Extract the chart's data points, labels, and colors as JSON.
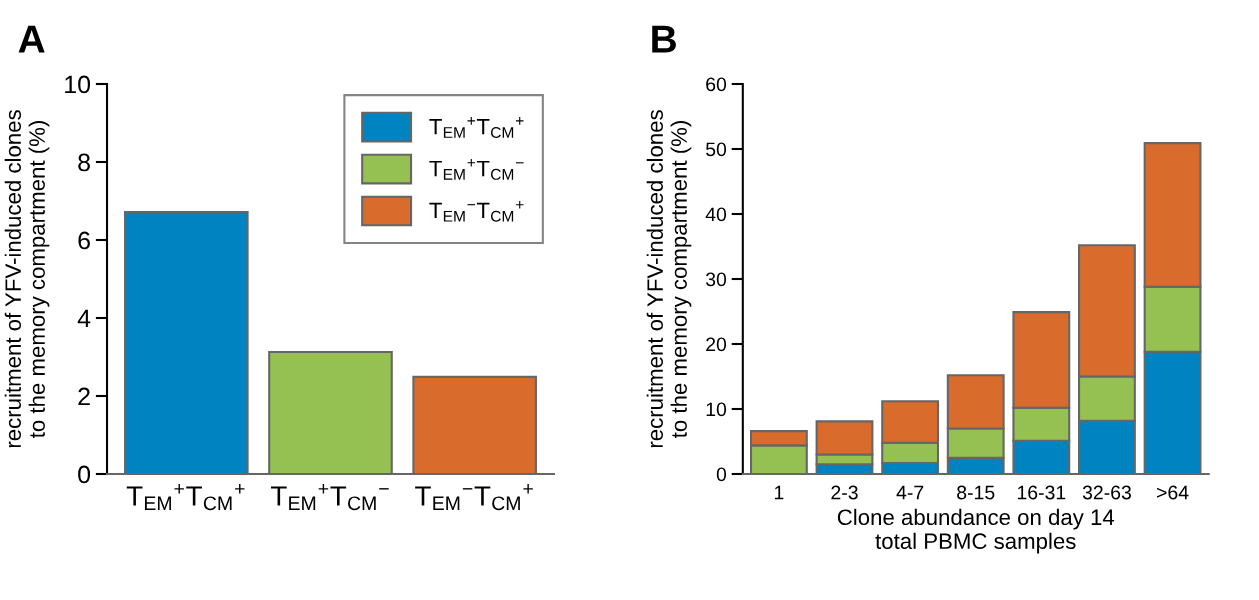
{
  "chart_data": [
    {
      "type": "bar",
      "title": "A",
      "ylabel": "recruitment of YFV-induced clones\nto the memory compartment (%)",
      "categories": [
        "T$_{EM}$$^{+}$T$_{CM}$$^{+}$",
        "T$_{EM}$$^{+}$T$_{CM}$$^{−}$",
        "T$_{EM}$$^{−}$T$_{CM}$$^{+}$"
      ],
      "series": [
        {
          "name": "T$_{EM}$$^{+}$T$_{CM}$$^{+}$",
          "color": "#0083c1",
          "values": [
            6.72,
            null,
            null
          ]
        },
        {
          "name": "T$_{EM}$$^{+}$T$_{CM}$$^{−}$",
          "color": "#94c151",
          "values": [
            null,
            3.13,
            null
          ]
        },
        {
          "name": "T$_{EM}$$^{−}$T$_{CM}$$^{+}$",
          "color": "#d96b2d",
          "values": [
            null,
            null,
            2.49
          ]
        }
      ],
      "ylim": [
        0,
        10
      ],
      "yticks": [
        0,
        2,
        4,
        6,
        8,
        10
      ],
      "grid": false,
      "legend": "top right"
    },
    {
      "type": "bar",
      "title": "B",
      "ylabel": "recruitment of YFV-induced clones\nto the memory compartment (%)",
      "xlabel": "Clone abundance on day 14\ntotal PBMC samples",
      "categories": [
        "1",
        "2-3",
        "4-7",
        "8-15",
        "16-31",
        "32-63",
        ">64"
      ],
      "stacked": true,
      "series": [
        {
          "color": "#0083c1",
          "values": [
            0,
            1.5,
            1.7,
            2.5,
            5.1,
            8.2,
            18.8
          ]
        },
        {
          "color": "#94c151",
          "values": [
            4.4,
            1.5,
            3.1,
            4.5,
            5.1,
            6.8,
            10.0
          ]
        },
        {
          "color": "#d96b2d",
          "values": [
            2.2,
            5.1,
            6.4,
            8.2,
            14.7,
            20.2,
            22.1
          ]
        }
      ],
      "ylim": [
        0,
        60
      ],
      "yticks": [
        0,
        10,
        20,
        30,
        40,
        50,
        60
      ],
      "grid": false
    }
  ]
}
